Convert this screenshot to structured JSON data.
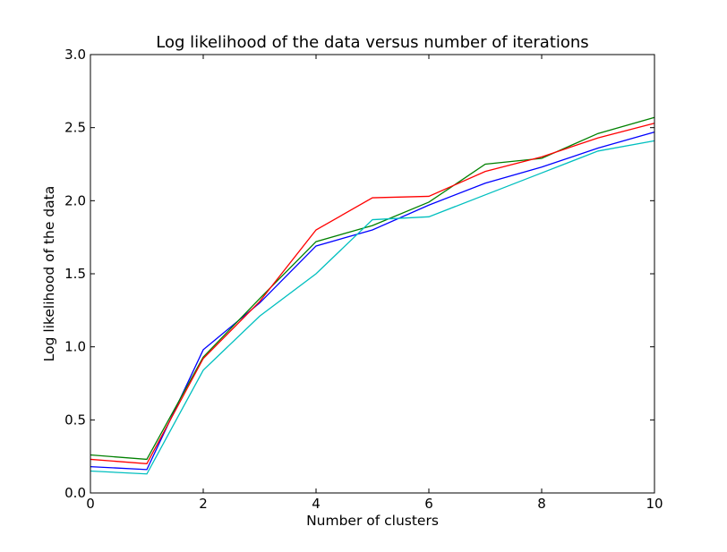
{
  "chart_data": {
    "type": "line",
    "title": "Log likelihood of the data versus number of iterations",
    "xlabel": "Number of clusters",
    "ylabel": "Log likelihood of the data",
    "xlim": [
      0,
      10
    ],
    "ylim": [
      0,
      3.0
    ],
    "xticks": [
      "0",
      "2",
      "4",
      "6",
      "8",
      "10"
    ],
    "yticks": [
      "0.0",
      "0.5",
      "1.0",
      "1.5",
      "2.0",
      "2.5",
      "3.0"
    ],
    "grid": false,
    "legend": null,
    "x": [
      0,
      1,
      2,
      3,
      4,
      5,
      6,
      7,
      8,
      9,
      10
    ],
    "series": [
      {
        "color": "#0000ff",
        "values": [
          0.18,
          0.16,
          0.98,
          1.3,
          1.69,
          1.8,
          1.97,
          2.12,
          2.23,
          2.36,
          2.47
        ]
      },
      {
        "color": "#008000",
        "values": [
          0.26,
          0.23,
          0.93,
          1.33,
          1.72,
          1.83,
          1.99,
          2.25,
          2.29,
          2.46,
          2.57
        ]
      },
      {
        "color": "#ff0000",
        "values": [
          0.23,
          0.2,
          0.92,
          1.31,
          1.8,
          2.02,
          2.03,
          2.2,
          2.3,
          2.43,
          2.53
        ]
      },
      {
        "color": "#00bfbf",
        "values": [
          0.15,
          0.13,
          0.84,
          1.21,
          1.5,
          1.87,
          1.89,
          2.04,
          2.19,
          2.34,
          2.41
        ]
      }
    ]
  }
}
